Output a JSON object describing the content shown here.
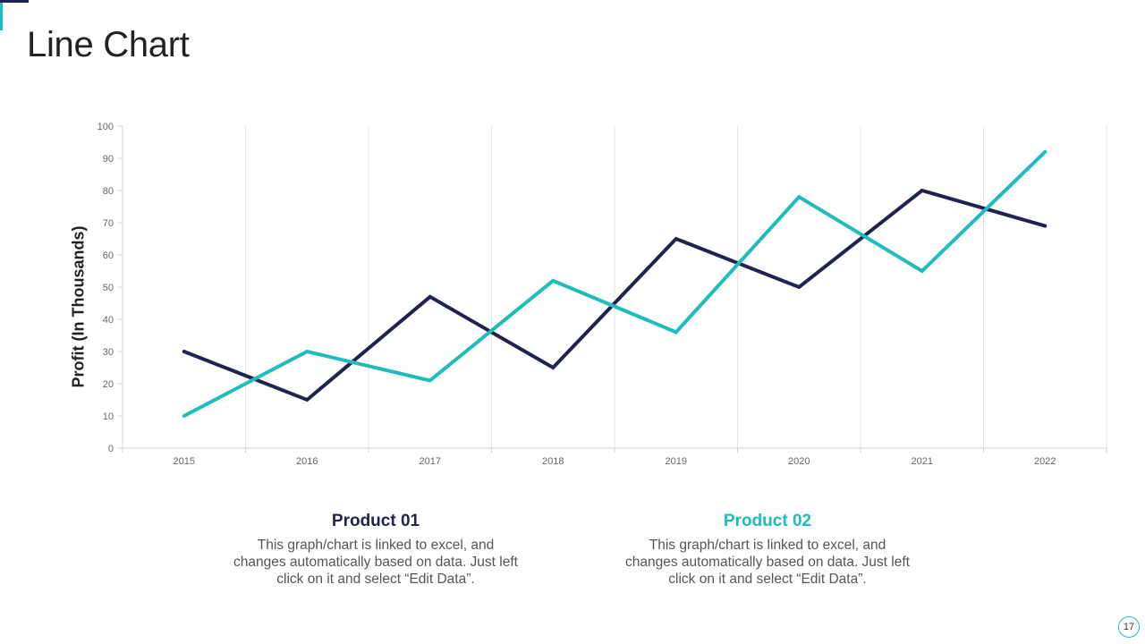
{
  "page": {
    "title": "Line Chart",
    "page_number": "17"
  },
  "colors": {
    "product01": "#1f2350",
    "product02": "#1fbcbc",
    "accent": "#1fbcbc"
  },
  "chart_data": {
    "type": "line",
    "categories": [
      "2015",
      "2016",
      "2017",
      "2018",
      "2019",
      "2020",
      "2021",
      "2022"
    ],
    "series": [
      {
        "name": "Product 01",
        "values": [
          30,
          15,
          47,
          25,
          65,
          50,
          80,
          69
        ]
      },
      {
        "name": "Product 02",
        "values": [
          10,
          30,
          21,
          52,
          36,
          78,
          55,
          92
        ]
      }
    ],
    "title": "",
    "xlabel": "",
    "ylabel": "Profit (In Thousands)",
    "ylim": [
      0,
      100
    ],
    "yticks": [
      "0",
      "10",
      "20",
      "30",
      "40",
      "50",
      "60",
      "70",
      "80",
      "90",
      "100"
    ],
    "grid": "vertical"
  },
  "products": [
    {
      "name": "Product 01",
      "description": "This graph/chart is linked to excel, and changes automatically based on data. Just left click on it and select “Edit Data”."
    },
    {
      "name": "Product 02",
      "description": "This graph/chart is linked to excel, and changes automatically based on data. Just left click on it and select “Edit Data”."
    }
  ]
}
